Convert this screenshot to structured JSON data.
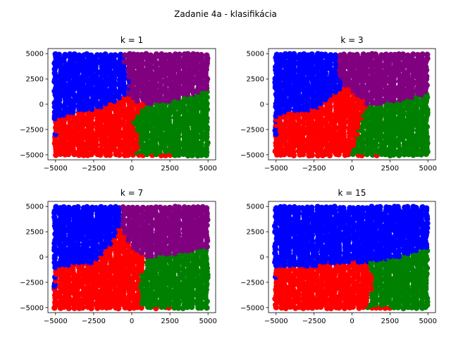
{
  "figure": {
    "suptitle": "Zadanie 4a - klasifikácia"
  },
  "chart_data": [
    {
      "type": "scatter",
      "title": "k = 1",
      "xlabel": "",
      "ylabel": "",
      "xlim": [
        -5500,
        5500
      ],
      "ylim": [
        -5500,
        5500
      ],
      "xticks": [
        -5000,
        -2500,
        0,
        2500,
        5000
      ],
      "yticks": [
        -5000,
        -2500,
        0,
        2500,
        5000
      ],
      "xtick_labels": [
        "−5000",
        "−2500",
        "0",
        "2500",
        "5000"
      ],
      "ytick_labels": [
        "−5000",
        "−2500",
        "0",
        "2500",
        "5000"
      ],
      "grid": false,
      "colors": {
        "blue": "#0000ff",
        "purple": "#800080",
        "red": "#ff0000",
        "green": "#008000"
      },
      "regions": [
        {
          "color": "blue",
          "polygon": [
            [
              -5000,
              5000
            ],
            [
              -500,
              5000
            ],
            [
              -500,
              3000
            ],
            [
              -100,
              2500
            ],
            [
              -300,
              1000
            ],
            [
              -1500,
              0
            ],
            [
              -2500,
              -500
            ],
            [
              -5000,
              -1200
            ]
          ]
        },
        {
          "color": "purple",
          "polygon": [
            [
              -500,
              5000
            ],
            [
              5000,
              5000
            ],
            [
              5000,
              1500
            ],
            [
              3000,
              500
            ],
            [
              1000,
              0
            ],
            [
              0,
              500
            ],
            [
              -300,
              1000
            ],
            [
              -100,
              2500
            ],
            [
              -500,
              3000
            ]
          ]
        },
        {
          "color": "red",
          "polygon": [
            [
              -5000,
              -1200
            ],
            [
              -2500,
              -500
            ],
            [
              -1500,
              0
            ],
            [
              -300,
              1000
            ],
            [
              0,
              500
            ],
            [
              800,
              -200
            ],
            [
              0,
              -1500
            ],
            [
              500,
              -3000
            ],
            [
              300,
              -5000
            ],
            [
              -5000,
              -5000
            ]
          ]
        },
        {
          "color": "green",
          "polygon": [
            [
              800,
              -200
            ],
            [
              3000,
              500
            ],
            [
              5000,
              1500
            ],
            [
              5000,
              -5000
            ],
            [
              300,
              -5000
            ],
            [
              500,
              -3000
            ],
            [
              0,
              -1500
            ]
          ]
        }
      ]
    },
    {
      "type": "scatter",
      "title": "k = 3",
      "xlabel": "",
      "ylabel": "",
      "xlim": [
        -5500,
        5500
      ],
      "ylim": [
        -5500,
        5500
      ],
      "xticks": [
        -5000,
        -2500,
        0,
        2500,
        5000
      ],
      "yticks": [
        -5000,
        -2500,
        0,
        2500,
        5000
      ],
      "xtick_labels": [
        "−5000",
        "−2500",
        "0",
        "2500",
        "5000"
      ],
      "ytick_labels": [
        "−5000",
        "−2500",
        "0",
        "2500",
        "5000"
      ],
      "grid": false,
      "colors": {
        "blue": "#0000ff",
        "purple": "#800080",
        "red": "#ff0000",
        "green": "#008000"
      },
      "regions": [
        {
          "color": "blue",
          "polygon": [
            [
              -5000,
              5000
            ],
            [
              -1000,
              5000
            ],
            [
              -1000,
              3000
            ],
            [
              -500,
              2000
            ],
            [
              -1500,
              500
            ],
            [
              -2500,
              -500
            ],
            [
              -5000,
              -1000
            ]
          ]
        },
        {
          "color": "purple",
          "polygon": [
            [
              -1000,
              5000
            ],
            [
              5000,
              5000
            ],
            [
              5000,
              1000
            ],
            [
              3000,
              300
            ],
            [
              1000,
              0
            ],
            [
              -500,
              2000
            ],
            [
              -1000,
              3000
            ]
          ]
        },
        {
          "color": "red",
          "polygon": [
            [
              -5000,
              -1000
            ],
            [
              -2500,
              -500
            ],
            [
              -1500,
              500
            ],
            [
              -500,
              2000
            ],
            [
              1000,
              0
            ],
            [
              500,
              -2000
            ],
            [
              0,
              -5000
            ],
            [
              -5000,
              -5000
            ]
          ]
        },
        {
          "color": "green",
          "polygon": [
            [
              1000,
              0
            ],
            [
              3000,
              300
            ],
            [
              5000,
              1000
            ],
            [
              5000,
              -5000
            ],
            [
              0,
              -5000
            ],
            [
              500,
              -2000
            ]
          ]
        }
      ]
    },
    {
      "type": "scatter",
      "title": "k = 7",
      "xlabel": "",
      "ylabel": "",
      "xlim": [
        -5500,
        5500
      ],
      "ylim": [
        -5500,
        5500
      ],
      "xticks": [
        -5000,
        -2500,
        0,
        2500,
        5000
      ],
      "yticks": [
        -5000,
        -2500,
        0,
        2500,
        5000
      ],
      "xtick_labels": [
        "−5000",
        "−2500",
        "0",
        "2500",
        "5000"
      ],
      "ytick_labels": [
        "−5000",
        "−2500",
        "0",
        "2500",
        "5000"
      ],
      "grid": false,
      "colors": {
        "blue": "#0000ff",
        "purple": "#800080",
        "red": "#ff0000",
        "green": "#008000"
      },
      "regions": [
        {
          "color": "blue",
          "polygon": [
            [
              -5000,
              5000
            ],
            [
              -800,
              5000
            ],
            [
              -800,
              3000
            ],
            [
              -1500,
              1000
            ],
            [
              -2500,
              -500
            ],
            [
              -5000,
              -1000
            ]
          ]
        },
        {
          "color": "purple",
          "polygon": [
            [
              -800,
              5000
            ],
            [
              5000,
              5000
            ],
            [
              5000,
              1000
            ],
            [
              3000,
              300
            ],
            [
              1000,
              0
            ],
            [
              0,
              1000
            ],
            [
              -800,
              3000
            ]
          ]
        },
        {
          "color": "red",
          "polygon": [
            [
              -5000,
              -1000
            ],
            [
              -2500,
              -500
            ],
            [
              -1500,
              1000
            ],
            [
              -800,
              3000
            ],
            [
              0,
              1000
            ],
            [
              1000,
              0
            ],
            [
              500,
              -2000
            ],
            [
              500,
              -5000
            ],
            [
              -5000,
              -5000
            ]
          ]
        },
        {
          "color": "green",
          "polygon": [
            [
              1000,
              0
            ],
            [
              3000,
              300
            ],
            [
              5000,
              1000
            ],
            [
              5000,
              -5000
            ],
            [
              500,
              -5000
            ],
            [
              500,
              -2000
            ]
          ]
        }
      ]
    },
    {
      "type": "scatter",
      "title": "k = 15",
      "xlabel": "",
      "ylabel": "",
      "xlim": [
        -5500,
        5500
      ],
      "ylim": [
        -5500,
        5500
      ],
      "xticks": [
        -5000,
        -2500,
        0,
        2500,
        5000
      ],
      "yticks": [
        -5000,
        -2500,
        0,
        2500,
        5000
      ],
      "xtick_labels": [
        "−5000",
        "−2500",
        "0",
        "2500",
        "5000"
      ],
      "ytick_labels": [
        "−5000",
        "−2500",
        "0",
        "2500",
        "5000"
      ],
      "grid": false,
      "colors": {
        "blue": "#0000ff",
        "purple": "#800080",
        "red": "#ff0000",
        "green": "#008000"
      },
      "regions": [
        {
          "color": "blue",
          "polygon": [
            [
              -5000,
              5000
            ],
            [
              5000,
              5000
            ],
            [
              5000,
              1000
            ],
            [
              3000,
              0
            ],
            [
              1000,
              -500
            ],
            [
              -1000,
              -500
            ],
            [
              -3000,
              -1000
            ],
            [
              -5000,
              -1000
            ]
          ]
        },
        {
          "color": "red",
          "polygon": [
            [
              -5000,
              -1000
            ],
            [
              -3000,
              -1000
            ],
            [
              -1000,
              -500
            ],
            [
              1000,
              -500
            ],
            [
              1500,
              -2000
            ],
            [
              1000,
              -5000
            ],
            [
              -5000,
              -5000
            ]
          ]
        },
        {
          "color": "green",
          "polygon": [
            [
              1000,
              -500
            ],
            [
              3000,
              0
            ],
            [
              5000,
              1000
            ],
            [
              5000,
              -5000
            ],
            [
              1000,
              -5000
            ],
            [
              1500,
              -2000
            ]
          ]
        }
      ]
    }
  ]
}
